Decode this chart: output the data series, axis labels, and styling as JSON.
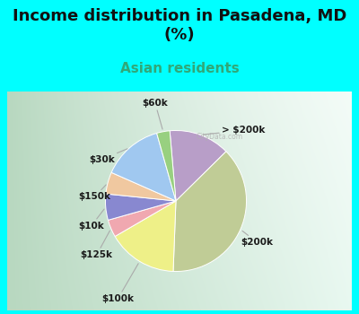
{
  "title": "Income distribution in Pasadena, MD\n(%)",
  "subtitle": "Asian residents",
  "background_color": "#00FFFF",
  "chart_bg_gradient_left": "#b8d8c0",
  "chart_bg_gradient_right": "#e8f4ee",
  "slices": [
    {
      "label": "> $200k",
      "value": 14,
      "color": "#b89ec8"
    },
    {
      "label": "$200k",
      "value": 38,
      "color": "#c0cc96"
    },
    {
      "label": "$100k",
      "value": 16,
      "color": "#eef088"
    },
    {
      "label": "$125k",
      "value": 4,
      "color": "#f0a8b0"
    },
    {
      "label": "$10k",
      "value": 6,
      "color": "#8888d0"
    },
    {
      "label": "$150k",
      "value": 5,
      "color": "#f0c8a0"
    },
    {
      "label": "$30k",
      "value": 14,
      "color": "#a0c8f0"
    },
    {
      "label": "$60k",
      "value": 3,
      "color": "#98d080"
    }
  ],
  "title_fontsize": 13,
  "subtitle_fontsize": 11,
  "subtitle_color": "#30a878",
  "label_fontsize": 7.5
}
